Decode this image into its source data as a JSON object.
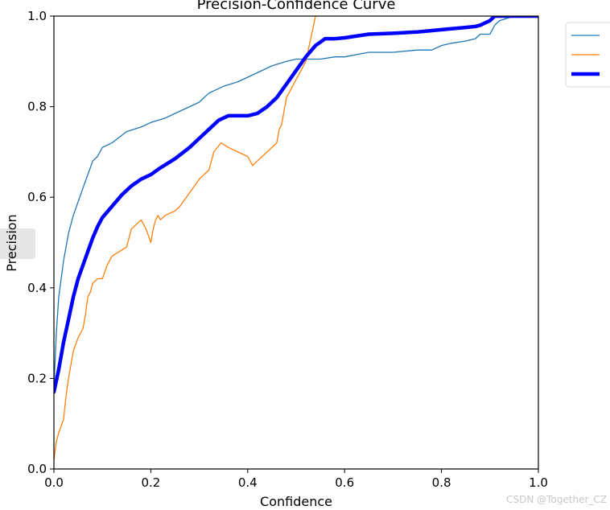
{
  "watermark": "CSDN @Together_CZ",
  "chart_data": {
    "type": "line",
    "title": "Precision-Confidence Curve",
    "xlabel": "Confidence",
    "ylabel": "Precision",
    "xlim": [
      0,
      1
    ],
    "ylim": [
      0,
      1
    ],
    "xticks": [
      "0.0",
      "0.2",
      "0.4",
      "0.6",
      "0.8",
      "1.0"
    ],
    "yticks": [
      "0.0",
      "0.2",
      "0.4",
      "0.6",
      "0.8",
      "1.0"
    ],
    "legend_position": "top-right (partially cropped)",
    "series": [
      {
        "name": "",
        "color": "#1f77b4",
        "style": "thin",
        "x": [
          0.0,
          0.005,
          0.01,
          0.02,
          0.03,
          0.04,
          0.05,
          0.06,
          0.07,
          0.08,
          0.09,
          0.1,
          0.12,
          0.15,
          0.18,
          0.2,
          0.23,
          0.25,
          0.28,
          0.3,
          0.32,
          0.35,
          0.38,
          0.4,
          0.42,
          0.45,
          0.48,
          0.5,
          0.55,
          0.58,
          0.6,
          0.65,
          0.7,
          0.75,
          0.78,
          0.8,
          0.82,
          0.85,
          0.87,
          0.88,
          0.9,
          0.91,
          0.92,
          0.95,
          1.0
        ],
        "y": [
          0.18,
          0.3,
          0.38,
          0.46,
          0.52,
          0.56,
          0.59,
          0.62,
          0.65,
          0.68,
          0.69,
          0.71,
          0.72,
          0.745,
          0.755,
          0.765,
          0.775,
          0.785,
          0.8,
          0.81,
          0.83,
          0.845,
          0.855,
          0.865,
          0.875,
          0.89,
          0.9,
          0.905,
          0.905,
          0.91,
          0.91,
          0.92,
          0.92,
          0.925,
          0.925,
          0.935,
          0.94,
          0.945,
          0.95,
          0.96,
          0.96,
          0.98,
          0.99,
          1.0,
          1.0
        ]
      },
      {
        "name": "",
        "color": "#ff7f0e",
        "style": "thin",
        "x": [
          0.0,
          0.005,
          0.01,
          0.02,
          0.025,
          0.03,
          0.04,
          0.05,
          0.06,
          0.065,
          0.07,
          0.075,
          0.08,
          0.09,
          0.1,
          0.11,
          0.12,
          0.15,
          0.16,
          0.18,
          0.19,
          0.2,
          0.205,
          0.21,
          0.215,
          0.22,
          0.23,
          0.25,
          0.26,
          0.28,
          0.3,
          0.32,
          0.33,
          0.345,
          0.36,
          0.38,
          0.4,
          0.41,
          0.42,
          0.44,
          0.46,
          0.465,
          0.47,
          0.48,
          0.5,
          0.52,
          0.54
        ],
        "y": [
          0.02,
          0.06,
          0.08,
          0.11,
          0.16,
          0.2,
          0.26,
          0.29,
          0.31,
          0.34,
          0.38,
          0.39,
          0.41,
          0.42,
          0.42,
          0.45,
          0.47,
          0.49,
          0.53,
          0.55,
          0.53,
          0.5,
          0.53,
          0.55,
          0.56,
          0.55,
          0.56,
          0.57,
          0.58,
          0.61,
          0.64,
          0.66,
          0.7,
          0.72,
          0.71,
          0.7,
          0.69,
          0.67,
          0.68,
          0.7,
          0.72,
          0.75,
          0.76,
          0.82,
          0.86,
          0.9,
          1.0
        ]
      },
      {
        "name": "",
        "color": "#0000ff",
        "style": "thick",
        "x": [
          0.0,
          0.01,
          0.02,
          0.03,
          0.04,
          0.05,
          0.06,
          0.07,
          0.08,
          0.09,
          0.1,
          0.12,
          0.14,
          0.16,
          0.18,
          0.2,
          0.22,
          0.25,
          0.28,
          0.3,
          0.32,
          0.34,
          0.36,
          0.38,
          0.4,
          0.42,
          0.44,
          0.46,
          0.48,
          0.5,
          0.52,
          0.54,
          0.56,
          0.58,
          0.6,
          0.65,
          0.7,
          0.75,
          0.8,
          0.82,
          0.85,
          0.87,
          0.88,
          0.9,
          0.91,
          0.92,
          0.95,
          1.0
        ],
        "y": [
          0.17,
          0.22,
          0.28,
          0.33,
          0.38,
          0.42,
          0.45,
          0.48,
          0.51,
          0.535,
          0.555,
          0.58,
          0.605,
          0.625,
          0.64,
          0.65,
          0.665,
          0.685,
          0.71,
          0.73,
          0.75,
          0.77,
          0.78,
          0.78,
          0.78,
          0.785,
          0.8,
          0.82,
          0.85,
          0.88,
          0.91,
          0.935,
          0.95,
          0.95,
          0.952,
          0.96,
          0.962,
          0.965,
          0.97,
          0.972,
          0.975,
          0.977,
          0.98,
          0.99,
          1.0,
          1.0,
          1.0,
          1.0
        ]
      }
    ]
  }
}
